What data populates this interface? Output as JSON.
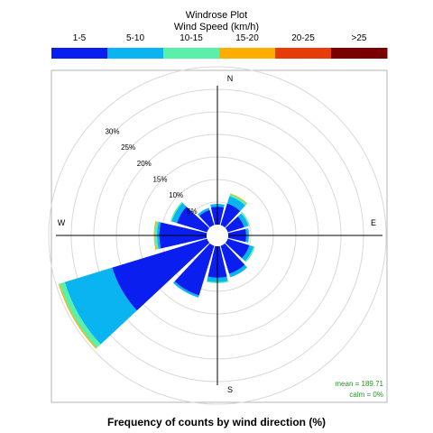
{
  "chart_data": {
    "type": "windrose",
    "legend": {
      "title": "Windrose Plot",
      "subtitle": "Wind Speed (km/h)",
      "bins": [
        {
          "label": "1-5",
          "color": "#0a1ef0"
        },
        {
          "label": "5-10",
          "color": "#0ab4f0"
        },
        {
          "label": "10-15",
          "color": "#5af0aa"
        },
        {
          "label": "15-20",
          "color": "#ffae00"
        },
        {
          "label": "20-25",
          "color": "#e63c0a"
        },
        {
          "label": ">25",
          "color": "#7a0000"
        }
      ]
    },
    "directions": {
      "north": "N",
      "east": "E",
      "south": "S",
      "west": "W"
    },
    "radial_ticks": [
      {
        "value": 5,
        "label": "5%"
      },
      {
        "value": 10,
        "label": "10%"
      },
      {
        "value": 15,
        "label": "15%"
      },
      {
        "value": 20,
        "label": "20%"
      },
      {
        "value": 25,
        "label": "25%"
      },
      {
        "value": 30,
        "label": "30%"
      }
    ],
    "rmax": 35,
    "sectors": [
      {
        "angle": 0,
        "values": [
          4.0,
          0.6,
          0.0,
          0,
          0,
          0
        ]
      },
      {
        "angle": 30,
        "values": [
          5.0,
          1.7,
          0.5,
          0.15,
          0,
          0
        ]
      },
      {
        "angle": 60,
        "values": [
          3.8,
          1.0,
          0.3,
          0,
          0,
          0
        ]
      },
      {
        "angle": 90,
        "values": [
          4.0,
          0.6,
          0.0,
          0,
          0,
          0
        ]
      },
      {
        "angle": 120,
        "values": [
          5.0,
          1.0,
          0.3,
          0,
          0,
          0
        ]
      },
      {
        "angle": 150,
        "values": [
          6.5,
          0.8,
          0.0,
          0,
          0,
          0
        ]
      },
      {
        "angle": 180,
        "values": [
          7.0,
          1.0,
          0.2,
          0,
          0,
          0
        ]
      },
      {
        "angle": 210,
        "values": [
          11.5,
          0.5,
          0.0,
          0,
          0,
          0
        ]
      },
      {
        "angle": 240,
        "values": [
          22.0,
          11.0,
          1.2,
          0.25,
          0,
          0
        ]
      },
      {
        "angle": 270,
        "values": [
          10.5,
          0.5,
          0.5,
          0.2,
          0,
          0
        ]
      },
      {
        "angle": 300,
        "values": [
          7.0,
          1.2,
          0.3,
          0,
          0,
          0
        ]
      },
      {
        "angle": 330,
        "values": [
          3.5,
          0.5,
          0.0,
          0,
          0,
          0
        ]
      }
    ],
    "stats": {
      "mean": "mean = 189.71",
      "calm": "calm = 0%"
    },
    "xlabel": "Frequency of counts by wind direction (%)"
  }
}
